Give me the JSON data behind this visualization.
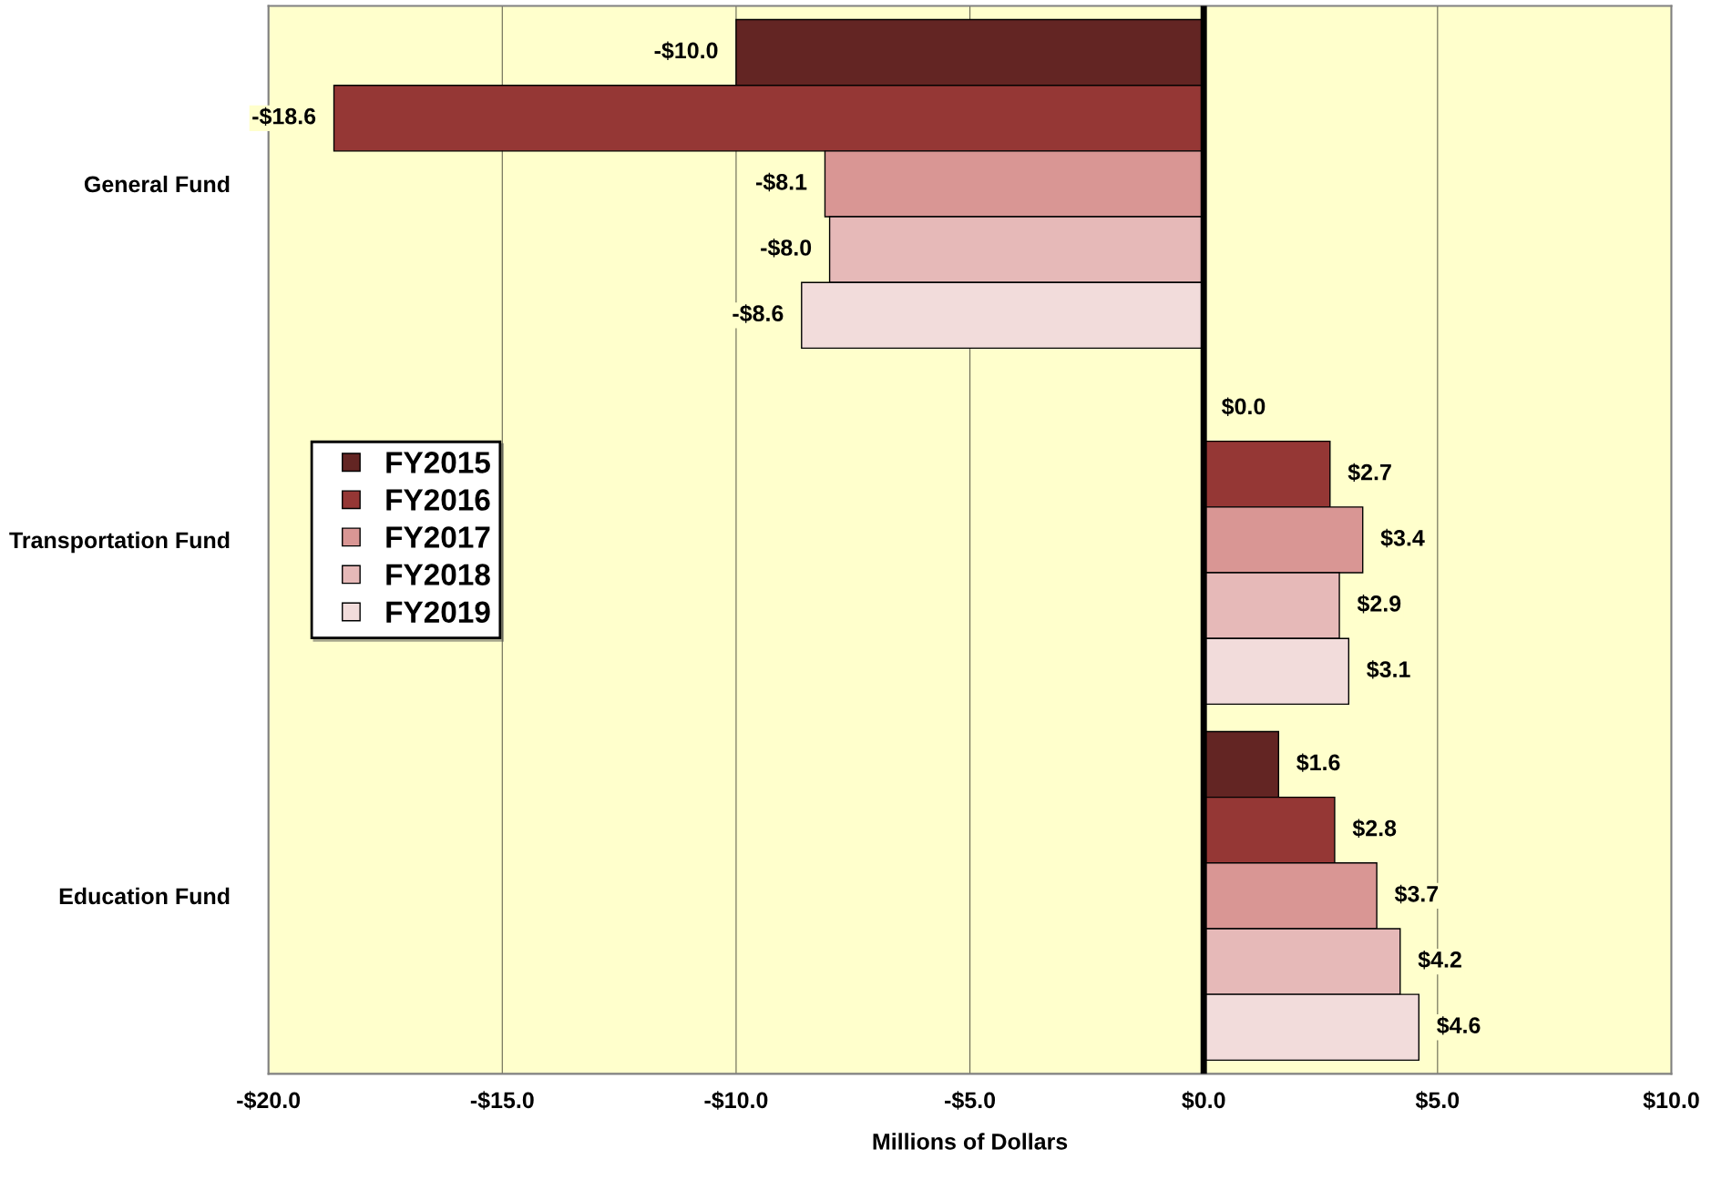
{
  "chart_data": {
    "type": "bar",
    "orientation": "horizontal",
    "xlabel": "Millions of Dollars",
    "categories": [
      "General Fund",
      "Transportation Fund",
      "Education Fund"
    ],
    "series": [
      {
        "name": "FY2015",
        "color": "#632523",
        "values": [
          -10.0,
          0.0,
          1.6
        ],
        "value_labels": [
          "-$10.0",
          "$0.0",
          "$1.6"
        ]
      },
      {
        "name": "FY2016",
        "color": "#953735",
        "values": [
          -18.6,
          2.7,
          2.8
        ],
        "value_labels": [
          "-$18.6",
          "$2.7",
          "$2.8"
        ]
      },
      {
        "name": "FY2017",
        "color": "#d99694",
        "values": [
          -8.1,
          3.4,
          3.7
        ],
        "value_labels": [
          "-$8.1",
          "$3.4",
          "$3.7"
        ]
      },
      {
        "name": "FY2018",
        "color": "#e6b9b8",
        "values": [
          -8.0,
          2.9,
          4.2
        ],
        "value_labels": [
          "-$8.0",
          "$2.9",
          "$4.2"
        ]
      },
      {
        "name": "FY2019",
        "color": "#f2dcdb",
        "values": [
          -8.6,
          3.1,
          4.6
        ],
        "value_labels": [
          "-$8.6",
          "$3.1",
          "$4.6"
        ]
      }
    ],
    "xlim": [
      -20,
      10
    ],
    "xticks": [
      {
        "value": -20,
        "label": "-$20.0"
      },
      {
        "value": -15,
        "label": "-$15.0"
      },
      {
        "value": -10,
        "label": "-$10.0"
      },
      {
        "value": -5,
        "label": "-$5.0"
      },
      {
        "value": 0,
        "label": "$0.0"
      },
      {
        "value": 5,
        "label": "$5.0"
      },
      {
        "value": 10,
        "label": "$10.0"
      }
    ],
    "ref_lines": [
      {
        "axis": "x",
        "value": 0,
        "color": "#000000"
      }
    ],
    "grid": "x",
    "legend": "left"
  }
}
